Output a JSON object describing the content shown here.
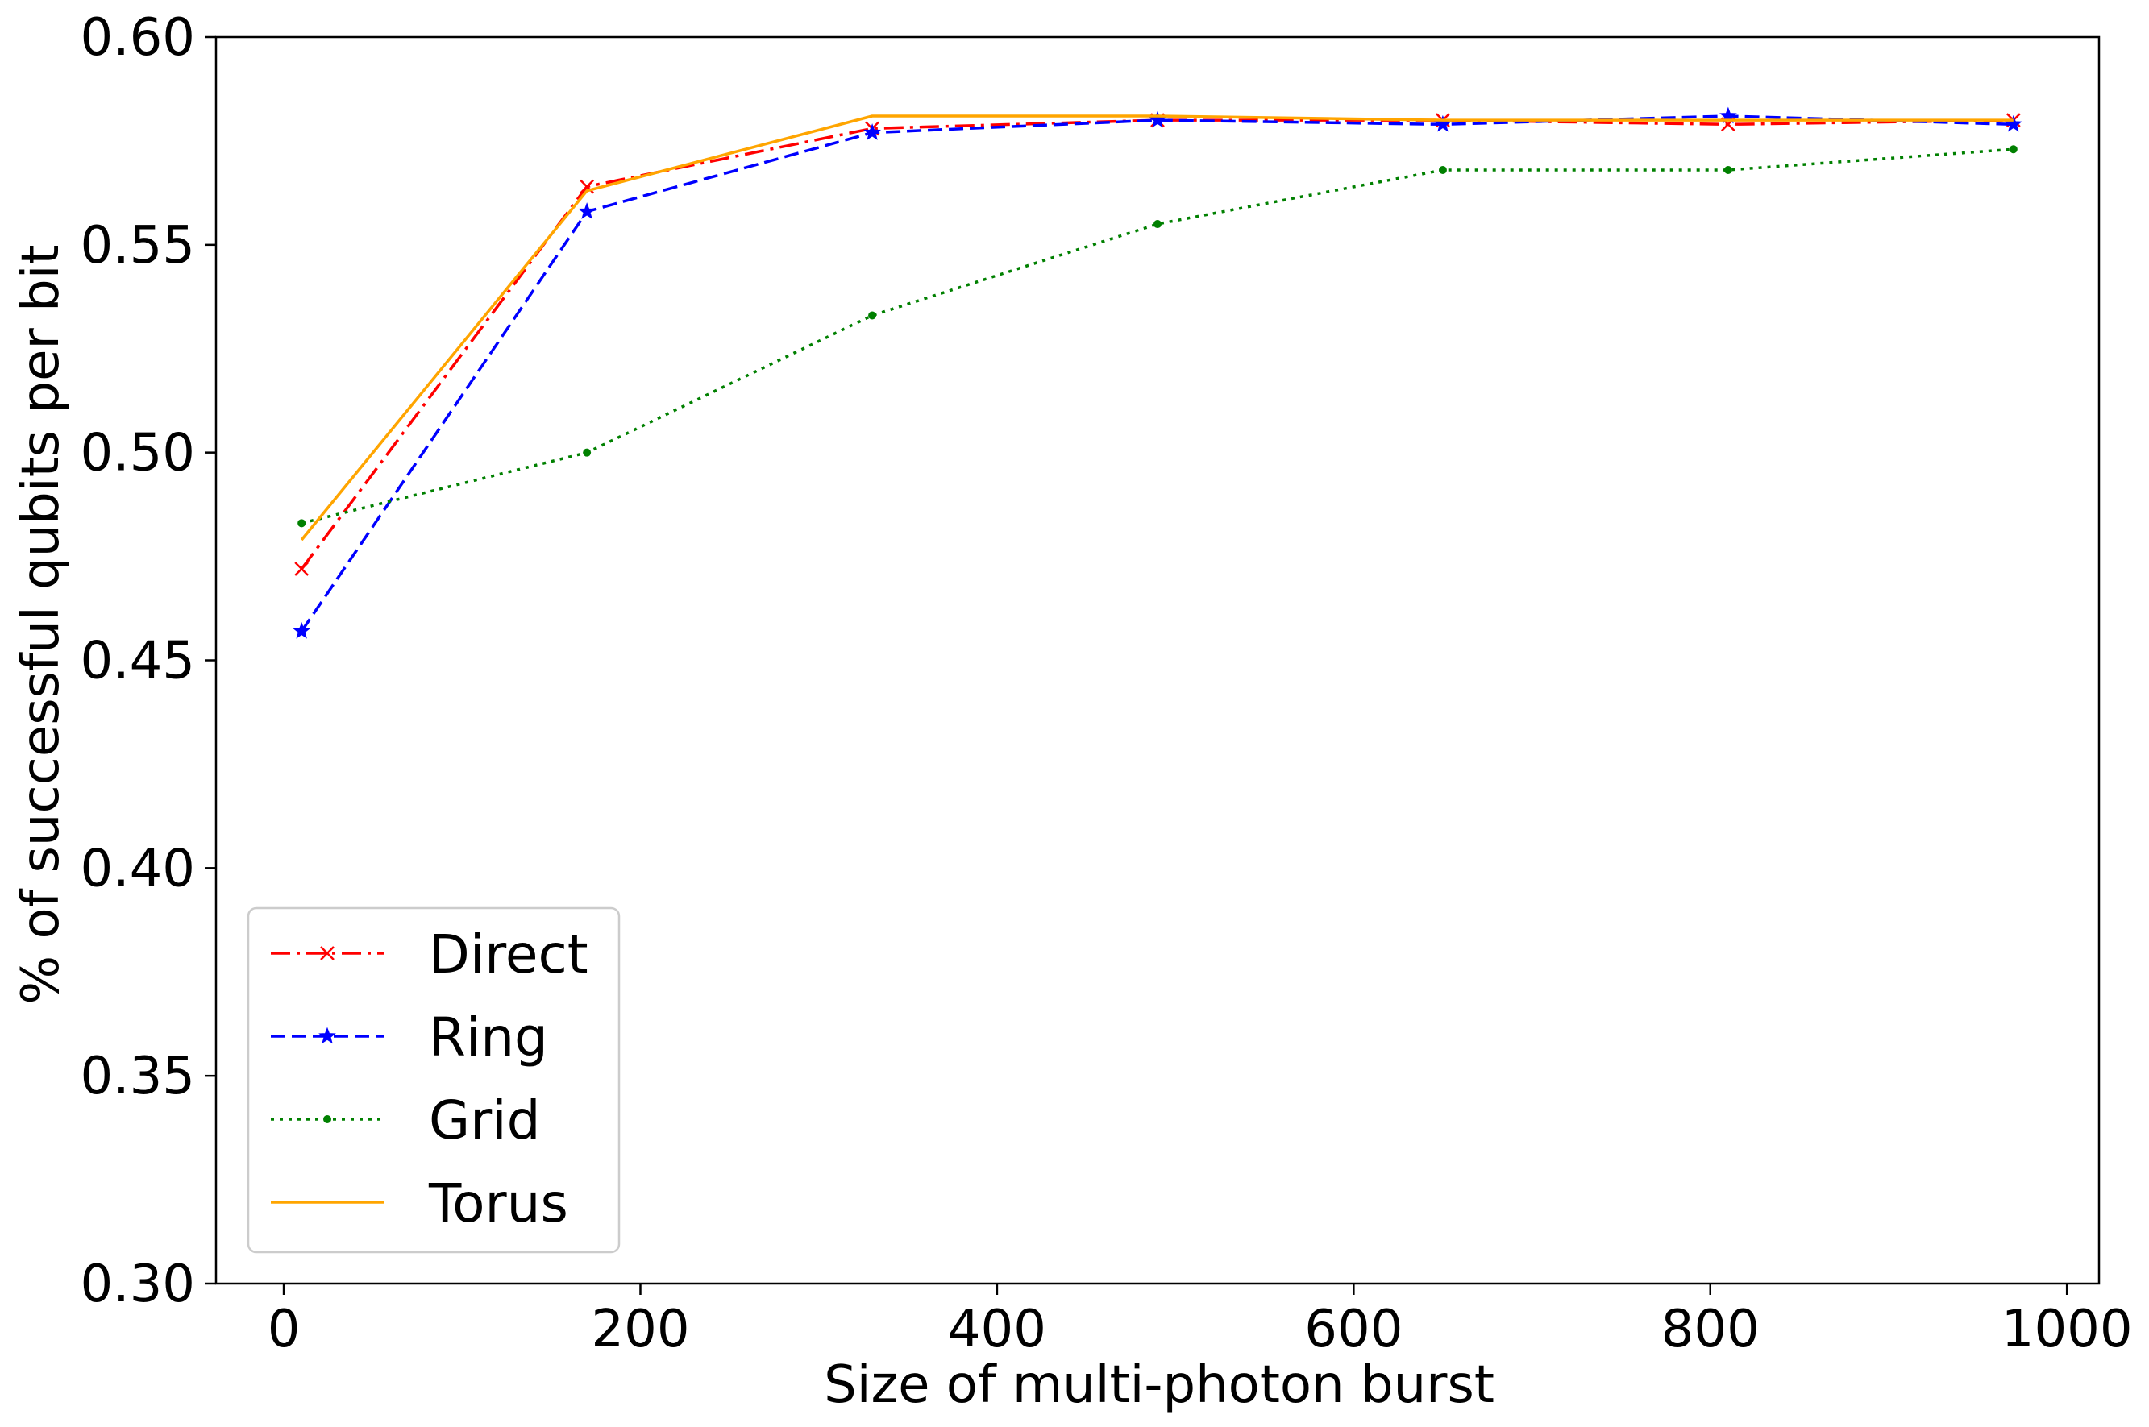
{
  "chart_data": {
    "type": "line",
    "title": "",
    "xlabel": "Size of multi-photon burst",
    "ylabel": "% of successful qubits per bit",
    "xlim": [
      -38,
      1018
    ],
    "ylim": [
      0.3,
      0.6
    ],
    "x_ticks": [
      0,
      200,
      400,
      600,
      800,
      1000
    ],
    "x_tick_labels": [
      "0",
      "200",
      "400",
      "600",
      "800",
      "1000"
    ],
    "y_ticks": [
      0.3,
      0.35,
      0.4,
      0.45,
      0.5,
      0.55,
      0.6
    ],
    "y_tick_labels": [
      "0.30",
      "0.35",
      "0.40",
      "0.45",
      "0.50",
      "0.55",
      "0.60"
    ],
    "grid": false,
    "legend_position": "lower-left",
    "x": [
      10,
      170,
      330,
      490,
      650,
      810,
      970
    ],
    "series": [
      {
        "name": "Direct",
        "color": "#ff0000",
        "linestyle": "dash-dot",
        "marker": "x",
        "values": [
          0.472,
          0.564,
          0.578,
          0.58,
          0.58,
          0.579,
          0.58
        ]
      },
      {
        "name": "Ring",
        "color": "#0000ff",
        "linestyle": "dashed",
        "marker": "star",
        "values": [
          0.457,
          0.558,
          0.577,
          0.58,
          0.579,
          0.581,
          0.579
        ]
      },
      {
        "name": "Grid",
        "color": "#008000",
        "linestyle": "dotted",
        "marker": "dot",
        "values": [
          0.483,
          0.5,
          0.533,
          0.555,
          0.568,
          0.568,
          0.573
        ]
      },
      {
        "name": "Torus",
        "color": "#ffa500",
        "linestyle": "solid",
        "marker": "none",
        "values": [
          0.479,
          0.563,
          0.581,
          0.581,
          0.58,
          0.58,
          0.58
        ]
      }
    ]
  }
}
